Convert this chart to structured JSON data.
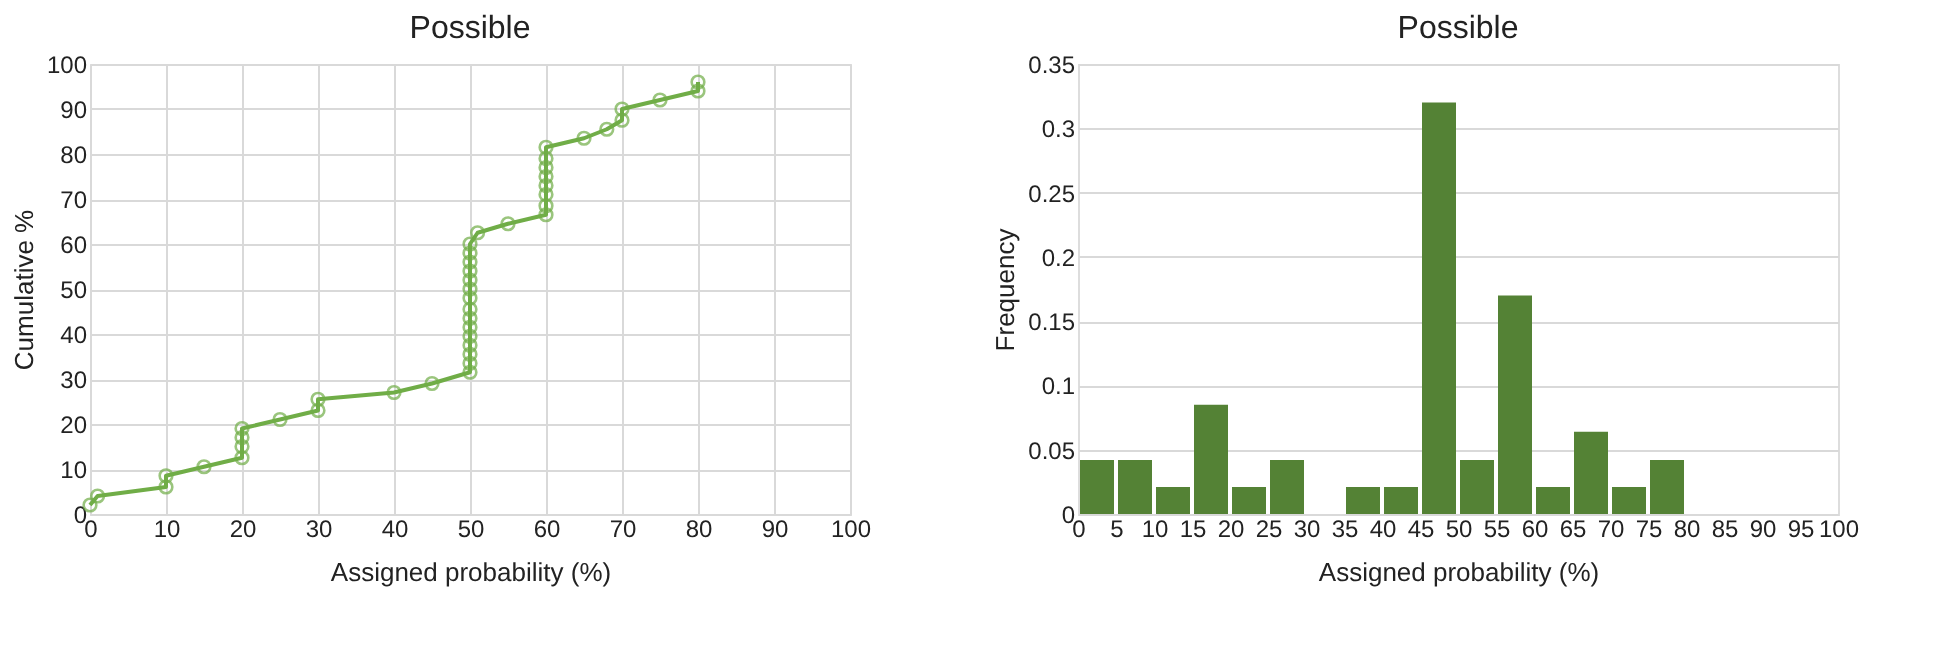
{
  "chart_data": [
    {
      "type": "line",
      "title": "Possible",
      "xlabel": "Assigned probability (%)",
      "ylabel": "Cumulative %",
      "series": [
        {
          "color": "#70ad47",
          "x": [
            0,
            1,
            10,
            10,
            15,
            20,
            20,
            20,
            20,
            25,
            30,
            30,
            40,
            45,
            50,
            50,
            50,
            50,
            50,
            50,
            50,
            50,
            50,
            50,
            50,
            50,
            50,
            50,
            50,
            51,
            55,
            60,
            60,
            60,
            60,
            60,
            60,
            60,
            60,
            65,
            68,
            70,
            70,
            75,
            80,
            80
          ],
          "values": [
            2,
            4,
            6,
            8.5,
            10.5,
            12.5,
            15,
            17,
            19,
            21,
            23,
            25.5,
            27,
            29,
            31.5,
            33.5,
            35.5,
            37.5,
            39.5,
            41.5,
            43.5,
            45.5,
            48,
            50,
            52,
            54,
            56,
            58,
            60,
            62.5,
            64.5,
            66.5,
            68.5,
            71,
            73,
            75,
            77,
            79,
            81.5,
            83.5,
            85.5,
            87.5,
            90,
            92,
            94,
            96
          ]
        }
      ],
      "xlim": [
        0,
        100
      ],
      "xticks": [
        0,
        10,
        20,
        30,
        40,
        50,
        60,
        70,
        80,
        90,
        100
      ],
      "ylim": [
        0,
        100
      ],
      "yticks": [
        0,
        10,
        20,
        30,
        40,
        50,
        60,
        70,
        80,
        90,
        100
      ],
      "grid": true,
      "marker": "circle",
      "line_style": "solid"
    },
    {
      "type": "histogram",
      "title": "Possible",
      "xlabel": "Assigned probability (%)",
      "ylabel": "Frequency",
      "color": "#548235",
      "bins": [
        0,
        5,
        10,
        15,
        20,
        25,
        30,
        35,
        40,
        45,
        50,
        55,
        60,
        65,
        70,
        75,
        80,
        85,
        90,
        95,
        100
      ],
      "values": [
        0.042,
        0.042,
        0.021,
        0.085,
        0.021,
        0.042,
        0,
        0.021,
        0.021,
        0.32,
        0.042,
        0.17,
        0.021,
        0.064,
        0.021,
        0.042,
        0,
        0,
        0,
        0
      ],
      "xlim": [
        0,
        100
      ],
      "xticks": [
        0,
        5,
        10,
        15,
        20,
        25,
        30,
        35,
        40,
        45,
        50,
        55,
        60,
        65,
        70,
        75,
        80,
        85,
        90,
        95,
        100
      ],
      "ylim": [
        0,
        0.35
      ],
      "yticks": [
        0,
        0.05,
        0.1,
        0.15,
        0.2,
        0.25,
        0.3,
        0.35
      ],
      "grid": "y"
    }
  ]
}
